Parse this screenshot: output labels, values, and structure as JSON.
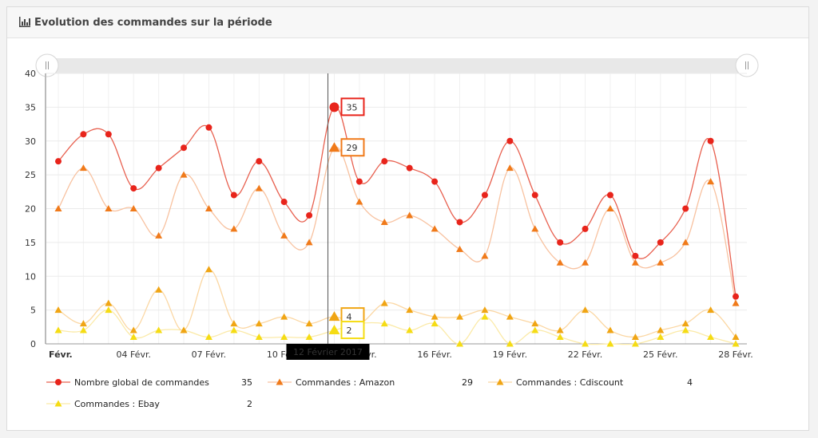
{
  "panel": {
    "title": "Evolution des commandes sur la période",
    "icon": "bar-chart-icon"
  },
  "chart_data": {
    "type": "line",
    "x": [
      "Févr.",
      "02 Févr.",
      "03 Févr.",
      "04 Févr.",
      "05 Févr.",
      "06 Févr.",
      "07 Févr.",
      "08 Févr.",
      "09 Févr.",
      "10 Févr.",
      "11 Févr.",
      "12 Févr.",
      "13 Févr.",
      "14 Févr.",
      "15 Févr.",
      "16 Févr.",
      "17 Févr.",
      "18 Févr.",
      "19 Févr.",
      "20 Févr.",
      "21 Févr.",
      "22 Févr.",
      "23 Févr.",
      "24 Févr.",
      "25 Févr.",
      "26 Févr.",
      "27 Févr.",
      "28 Févr."
    ],
    "tick_labels": [
      {
        "index": 0,
        "text": "Févr."
      },
      {
        "index": 3,
        "text": "04 Févr."
      },
      {
        "index": 6,
        "text": "07 Févr."
      },
      {
        "index": 9,
        "text": "10 Févr."
      },
      {
        "index": 12,
        "text": "13 Févr."
      },
      {
        "index": 15,
        "text": "16 Févr."
      },
      {
        "index": 18,
        "text": "19 Févr."
      },
      {
        "index": 21,
        "text": "22 Févr."
      },
      {
        "index": 24,
        "text": "25 Févr."
      },
      {
        "index": 27,
        "text": "28 Févr."
      }
    ],
    "ylim": [
      0,
      40
    ],
    "yticks": [
      0,
      5,
      10,
      15,
      20,
      25,
      30,
      35,
      40
    ],
    "grid": true,
    "legend_position": "bottom",
    "series": [
      {
        "name": "Nombre global de commandes",
        "color": "#e8241b",
        "line_color": "#e8604f",
        "marker": "circle",
        "current": "35",
        "values": [
          27,
          31,
          31,
          23,
          26,
          29,
          32,
          22,
          27,
          21,
          19,
          35,
          24,
          27,
          26,
          24,
          18,
          22,
          30,
          22,
          15,
          17,
          22,
          13,
          15,
          20,
          30,
          7
        ]
      },
      {
        "name": "Commandes : Amazon",
        "color": "#f07a1a",
        "line_color": "#f8c2a0",
        "marker": "triangle",
        "current": "29",
        "values": [
          20,
          26,
          20,
          20,
          16,
          25,
          20,
          17,
          23,
          16,
          15,
          29,
          21,
          18,
          19,
          17,
          14,
          13,
          26,
          17,
          12,
          12,
          20,
          12,
          12,
          15,
          24,
          6
        ]
      },
      {
        "name": "Commandes : Cdiscount",
        "color": "#f0a514",
        "line_color": "#fbd7a3",
        "marker": "triangle",
        "current": "4",
        "values": [
          5,
          3,
          6,
          2,
          8,
          2,
          11,
          3,
          3,
          4,
          3,
          4,
          3,
          6,
          5,
          4,
          4,
          5,
          4,
          3,
          2,
          5,
          2,
          1,
          2,
          3,
          5,
          1
        ]
      },
      {
        "name": "Commandes : Ebay",
        "color": "#f5dc14",
        "line_color": "#fbeaa8",
        "marker": "triangle",
        "current": "2",
        "values": [
          2,
          2,
          5,
          1,
          2,
          2,
          1,
          2,
          1,
          1,
          1,
          2,
          3,
          3,
          2,
          3,
          0,
          4,
          0,
          2,
          1,
          0,
          0,
          0,
          1,
          2,
          1,
          0
        ]
      }
    ],
    "crosshair_index": 11,
    "crosshair_label": "12 Février 2017"
  }
}
